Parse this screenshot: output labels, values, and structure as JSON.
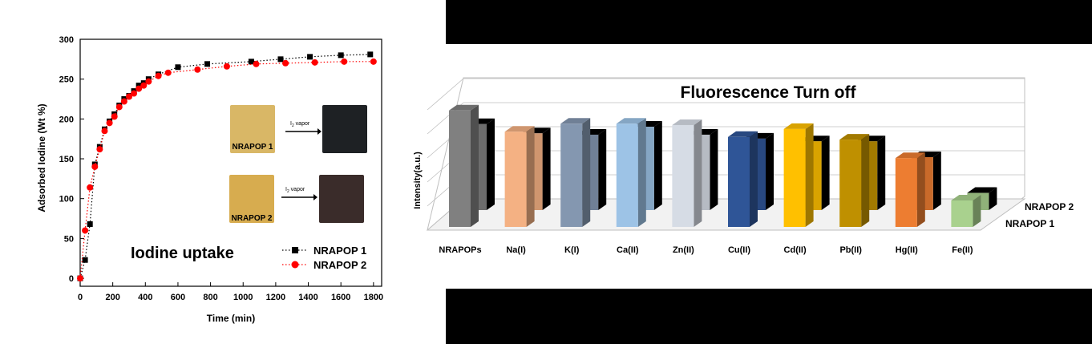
{
  "chart_data": [
    {
      "type": "scatter",
      "title": "Iodine uptake",
      "xlabel": "Time (min)",
      "ylabel": "Adsorbed Iodine (Wt %)",
      "xlim": [
        0,
        1850
      ],
      "ylim": [
        -10,
        300
      ],
      "xticks": [
        "0",
        "200",
        "400",
        "600",
        "800",
        "1000",
        "1200",
        "1400",
        "1600",
        "1800"
      ],
      "yticks": [
        "0",
        "50",
        "100",
        "150",
        "200",
        "250",
        "300"
      ],
      "legend_position": "bottom-right",
      "series": [
        {
          "name": "NRAPOP 1",
          "color": "#000000",
          "marker": "square",
          "x": [
            0,
            30,
            60,
            90,
            120,
            150,
            180,
            210,
            240,
            270,
            300,
            330,
            360,
            390,
            420,
            480,
            600,
            780,
            1050,
            1230,
            1410,
            1600,
            1780
          ],
          "y": [
            0,
            23,
            68,
            143,
            165,
            187,
            197,
            206,
            217,
            225,
            229,
            235,
            242,
            245,
            250,
            256,
            265,
            269,
            272,
            275,
            278,
            280,
            281
          ]
        },
        {
          "name": "NRAPOP 2",
          "color": "#ff0000",
          "marker": "circle",
          "x": [
            0,
            30,
            60,
            90,
            120,
            150,
            180,
            210,
            240,
            270,
            300,
            330,
            360,
            390,
            420,
            480,
            540,
            720,
            900,
            1080,
            1260,
            1440,
            1620,
            1800
          ],
          "y": [
            0,
            60,
            114,
            140,
            162,
            185,
            195,
            203,
            215,
            222,
            228,
            232,
            238,
            242,
            247,
            254,
            258,
            262,
            266,
            269,
            270,
            271,
            272,
            272
          ]
        }
      ],
      "insets": [
        {
          "label": "NRAPOP 1",
          "arrow_label": "I",
          "arrow_label_sub": "2",
          "arrow_label_rest": " vapor",
          "before_color": "#d9b766",
          "after_color": "#1e2124"
        },
        {
          "label": "NRAPOP 2",
          "arrow_label": "I",
          "arrow_label_sub": "2",
          "arrow_label_rest": " vapor",
          "before_color": "#d7ac4f",
          "after_color": "#3a2c2a"
        }
      ]
    },
    {
      "type": "bar",
      "title": "Fluorescence Turn off",
      "ylabel": "Intensity(a.u.)",
      "categories": [
        "NRAPOPs",
        "Na(I)",
        "K(I)",
        "Ca(II)",
        "Zn(II)",
        "Cu(II)",
        "Cd(II)",
        "Pb(II)",
        "Hg(II)",
        "Fe(II)"
      ],
      "colors": [
        "#808080",
        "#f4b183",
        "#8497b0",
        "#9dc3e6",
        "#d6dce5",
        "#2f5597",
        "#ffc000",
        "#bf9000",
        "#ed7d31",
        "#a9d18e"
      ],
      "ylim": [
        0,
        100
      ],
      "grid": true,
      "series": [
        {
          "name": "NRAPOP 1",
          "values": [
            88,
            72,
            78,
            78,
            77,
            68,
            74,
            66,
            52,
            20
          ]
        },
        {
          "name": "NRAPOP 2",
          "values": [
            65,
            58,
            57,
            63,
            57,
            54,
            52,
            52,
            40,
            13
          ]
        }
      ]
    }
  ]
}
